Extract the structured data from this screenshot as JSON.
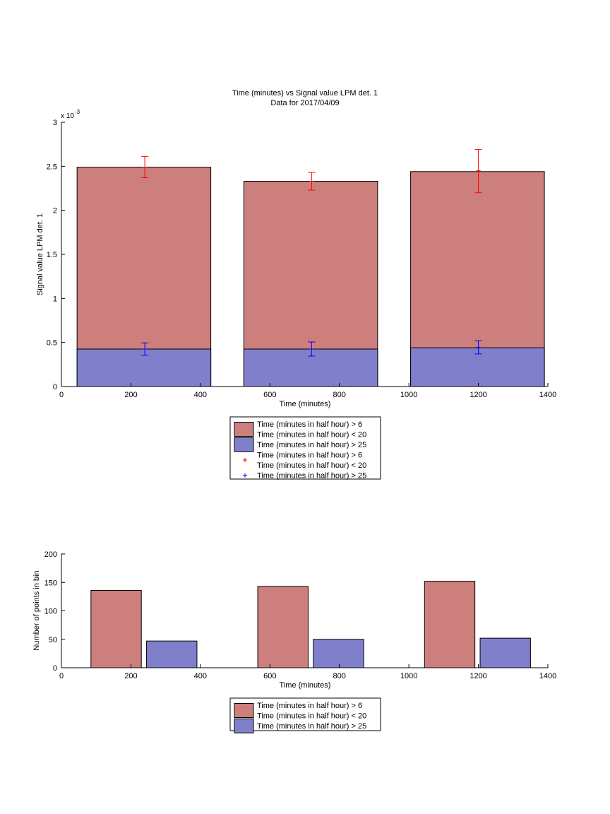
{
  "colors": {
    "series1": "#cc7f7d",
    "series2": "#7f7fcc",
    "err1": "#ff0000",
    "err2": "#0000ff"
  },
  "chart_data": [
    {
      "type": "bar",
      "title": "Time (minutes) vs Signal value LPM det. 1",
      "subtitle": "Data for 2017/04/09",
      "xlabel": "Time (minutes)",
      "ylabel": "Signal value LPM det. 1",
      "y_exponent_label": "x 10",
      "y_exponent": "-3",
      "xlim": [
        0,
        1400
      ],
      "ylim": [
        0,
        3
      ],
      "xticks": [
        0,
        200,
        400,
        600,
        800,
        1000,
        1200,
        1400
      ],
      "yticks": [
        0,
        0.5,
        1,
        1.5,
        2,
        2.5,
        3
      ],
      "ytick_labels": [
        "0",
        "0.5",
        "1",
        "1.5",
        "2",
        "2.5",
        "3"
      ],
      "bar_layout": "overlaid",
      "bin_edges": [
        [
          45,
          430
        ],
        [
          525,
          910
        ],
        [
          1005,
          1390
        ]
      ],
      "series": [
        {
          "name": "Time (minutes in half hour) > 6\nTime (minutes in half hour) < 20",
          "values": [
            2.49,
            2.33,
            2.44
          ],
          "error_center": [
            240,
            720,
            1200
          ],
          "error_y": [
            2.49,
            2.33,
            2.45
          ],
          "error_low": [
            2.37,
            2.23,
            2.2
          ],
          "error_high": [
            2.61,
            2.43,
            2.69
          ]
        },
        {
          "name": "Time (minutes in half hour) > 25",
          "values": [
            0.425,
            0.425,
            0.44
          ],
          "error_center": [
            240,
            720,
            1200
          ],
          "error_y": [
            0.425,
            0.425,
            0.445
          ],
          "error_low": [
            0.355,
            0.345,
            0.37
          ],
          "error_high": [
            0.495,
            0.505,
            0.52
          ]
        }
      ],
      "legend": {
        "placement": "below",
        "entries": [
          {
            "kind": "patch",
            "series": 0,
            "lines": [
              "Time (minutes in half hour) > 6",
              "Time (minutes in half hour) < 20"
            ]
          },
          {
            "kind": "patch",
            "series": 1,
            "lines": [
              "Time (minutes in half hour) > 25"
            ]
          },
          {
            "kind": "marker",
            "series": 0,
            "lines": [
              "Time (minutes in half hour) > 6",
              "Time (minutes in half hour) < 20"
            ]
          },
          {
            "kind": "marker",
            "series": 1,
            "lines": [
              "Time (minutes in half hour) > 25"
            ]
          }
        ]
      }
    },
    {
      "type": "bar",
      "xlabel": "Time (minutes)",
      "ylabel": "Number of points in bin",
      "xlim": [
        0,
        1400
      ],
      "ylim": [
        0,
        200
      ],
      "xticks": [
        0,
        200,
        400,
        600,
        800,
        1000,
        1200,
        1400
      ],
      "yticks": [
        0,
        50,
        100,
        150,
        200
      ],
      "ytick_labels": [
        "0",
        "50",
        "100",
        "150",
        "200"
      ],
      "bar_layout": "grouped",
      "series": [
        {
          "name": "Time (minutes in half hour) > 6\nTime (minutes in half hour) < 20",
          "bins": [
            [
              85,
              230
            ],
            [
              565,
              710
            ],
            [
              1045,
              1190
            ]
          ],
          "values": [
            136,
            143,
            152
          ]
        },
        {
          "name": "Time (minutes in half hour) > 25",
          "bins": [
            [
              245,
              390
            ],
            [
              725,
              870
            ],
            [
              1205,
              1350
            ]
          ],
          "values": [
            47,
            50,
            52
          ]
        }
      ],
      "legend": {
        "placement": "below",
        "entries": [
          {
            "kind": "patch",
            "series": 0,
            "lines": [
              "Time (minutes in half hour) > 6",
              "Time (minutes in half hour) < 20"
            ]
          },
          {
            "kind": "patch",
            "series": 1,
            "lines": [
              "Time (minutes in half hour) > 25"
            ]
          }
        ]
      }
    }
  ]
}
